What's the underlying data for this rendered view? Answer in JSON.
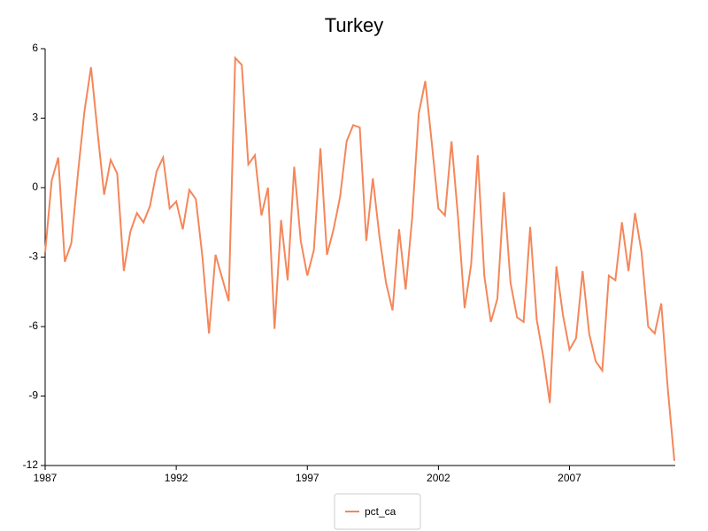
{
  "chart_data": {
    "type": "line",
    "title": "Turkey",
    "x": [
      1987,
      1987.25,
      1987.5,
      1987.75,
      1988,
      1988.25,
      1988.5,
      1988.75,
      1989,
      1989.25,
      1989.5,
      1989.75,
      1990,
      1990.25,
      1990.5,
      1990.75,
      1991,
      1991.25,
      1991.5,
      1991.75,
      1992,
      1992.25,
      1992.5,
      1992.75,
      1993,
      1993.25,
      1993.5,
      1993.75,
      1994,
      1994.25,
      1994.5,
      1994.75,
      1995,
      1995.25,
      1995.5,
      1995.75,
      1996,
      1996.25,
      1996.5,
      1996.75,
      1997,
      1997.25,
      1997.5,
      1997.75,
      1998,
      1998.25,
      1998.5,
      1998.75,
      1999,
      1999.25,
      1999.5,
      1999.75,
      2000,
      2000.25,
      2000.5,
      2000.75,
      2001,
      2001.25,
      2001.5,
      2001.75,
      2002,
      2002.25,
      2002.5,
      2002.75,
      2003,
      2003.25,
      2003.5,
      2003.75,
      2004,
      2004.25,
      2004.5,
      2004.75,
      2005,
      2005.25,
      2005.5,
      2005.75,
      2006,
      2006.25,
      2006.5,
      2006.75,
      2007,
      2007.25,
      2007.5,
      2007.75,
      2008,
      2008.25,
      2008.5,
      2008.75,
      2009,
      2009.25,
      2009.5,
      2009.75,
      2010,
      2010.25,
      2010.5,
      2010.75,
      2011
    ],
    "series": [
      {
        "name": "pct_ca",
        "color": "#f4875a",
        "values": [
          -2.8,
          0.3,
          1.3,
          -3.2,
          -2.4,
          0.6,
          3.3,
          5.2,
          2.4,
          -0.3,
          1.2,
          0.6,
          -3.6,
          -1.9,
          -1.1,
          -1.5,
          -0.8,
          0.7,
          1.3,
          -0.9,
          -0.6,
          -1.8,
          -0.1,
          -0.5,
          -3.0,
          -6.3,
          -2.9,
          -3.9,
          -4.9,
          5.6,
          5.3,
          1.0,
          1.4,
          -1.2,
          0.0,
          -6.1,
          -1.4,
          -4.0,
          0.9,
          -2.3,
          -3.8,
          -2.7,
          1.7,
          -2.9,
          -1.8,
          -0.4,
          2.0,
          2.7,
          2.6,
          -2.3,
          0.4,
          -2.1,
          -4.1,
          -5.3,
          -1.8,
          -4.4,
          -1.3,
          3.2,
          4.6,
          1.9,
          -0.9,
          -1.2,
          2.0,
          -1.3,
          -5.2,
          -3.3,
          1.4,
          -3.8,
          -5.8,
          -4.8,
          -0.2,
          -4.1,
          -5.6,
          -5.8,
          -1.7,
          -5.7,
          -7.3,
          -9.3,
          -3.4,
          -5.5,
          -7.0,
          -6.5,
          -3.6,
          -6.3,
          -7.5,
          -7.9,
          -3.8,
          -4.0,
          -1.5,
          -3.6,
          -1.1,
          -2.8,
          -6.0,
          -6.3,
          -5.0,
          -8.7,
          -11.8
        ]
      }
    ],
    "xlim": [
      1987,
      2011
    ],
    "xticks": [
      1987,
      1992,
      1997,
      2002,
      2007
    ],
    "ylim": [
      -12,
      6
    ],
    "yticks": [
      -12,
      -9,
      -6,
      -3,
      0,
      3,
      6
    ]
  }
}
